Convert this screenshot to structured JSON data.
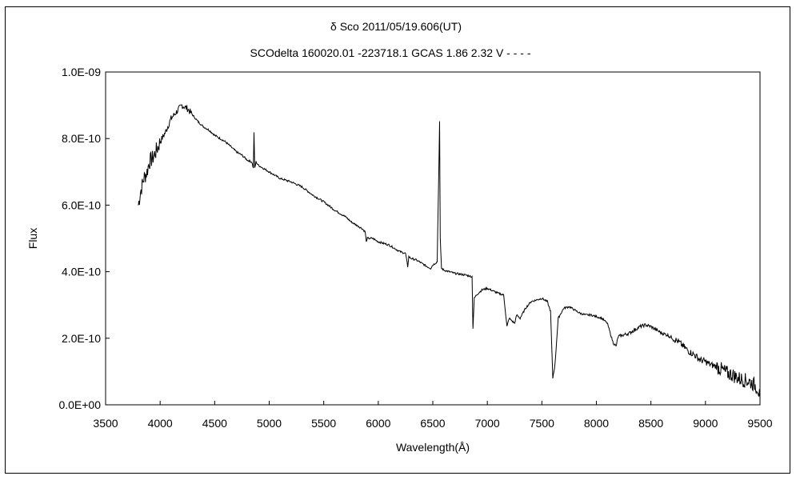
{
  "chart_data": {
    "type": "line",
    "title": "δ Sco      2011/05/19.606(UT)",
    "subtitle": "SCOdelta 160020.01 -223718.1 GCAS 1.86 2.32 V - - - -",
    "xlabel": "Wavelength(Å)",
    "ylabel": "Flux",
    "xlim": [
      3500,
      9500
    ],
    "ylim": [
      0,
      1e-09
    ],
    "x_ticks": [
      3500,
      4000,
      4500,
      5000,
      5500,
      6000,
      6500,
      7000,
      7500,
      8000,
      8500,
      9000,
      9500
    ],
    "x_tick_labels": [
      "3500",
      "4000",
      "4500",
      "5000",
      "5500",
      "6000",
      "6500",
      "7000",
      "7500",
      "8000",
      "8500",
      "9000",
      "9500"
    ],
    "y_ticks": [
      0,
      2e-10,
      4e-10,
      6e-10,
      8e-10,
      1e-09
    ],
    "y_tick_labels": [
      "0.0E+00",
      "2.0E-10",
      "4.0E-10",
      "6.0E-10",
      "8.0E-10",
      "1.0E-09"
    ],
    "grid": false,
    "legend": "none",
    "series": [
      {
        "x": [
          3800,
          3820,
          3850,
          3880,
          3900,
          3930,
          3960,
          4000,
          4050,
          4100,
          4150,
          4200,
          4250,
          4300,
          4350,
          4400,
          4450,
          4500,
          4550,
          4600,
          4650,
          4700,
          4750,
          4800,
          4840,
          4855,
          4861,
          4867,
          4880,
          4900,
          4950,
          5000,
          5050,
          5100,
          5150,
          5200,
          5300,
          5400,
          5500,
          5600,
          5700,
          5750,
          5800,
          5850,
          5880,
          5890,
          5900,
          5950,
          6000,
          6100,
          6200,
          6250,
          6270,
          6280,
          6300,
          6350,
          6400,
          6450,
          6480,
          6500,
          6540,
          6555,
          6562,
          6568,
          6580,
          6600,
          6700,
          6800,
          6860,
          6868,
          6880,
          6900,
          6950,
          7000,
          7100,
          7150,
          7180,
          7200,
          7250,
          7270,
          7300,
          7350,
          7400,
          7500,
          7550,
          7580,
          7600,
          7620,
          7650,
          7700,
          7750,
          7800,
          7850,
          7900,
          7950,
          8000,
          8050,
          8100,
          8150,
          8180,
          8200,
          8250,
          8300,
          8350,
          8400,
          8450,
          8500,
          8550,
          8600,
          8650,
          8700,
          8750,
          8800,
          8850,
          8900,
          8950,
          9000,
          9050,
          9100,
          9150,
          9200,
          9250,
          9300,
          9350,
          9400,
          9450,
          9480,
          9500
        ],
        "y": [
          6e-10,
          6.4e-10,
          6.8e-10,
          7e-10,
          7.3e-10,
          7.4e-10,
          7.6e-10,
          7.9e-10,
          8.2e-10,
          8.6e-10,
          8.8e-10,
          9e-10,
          8.9e-10,
          8.7e-10,
          8.5e-10,
          8.35e-10,
          8.25e-10,
          8.1e-10,
          8e-10,
          7.9e-10,
          7.75e-10,
          7.6e-10,
          7.5e-10,
          7.35e-10,
          7.3e-10,
          7.1e-10,
          8.2e-10,
          7.1e-10,
          7.3e-10,
          7.2e-10,
          7.1e-10,
          7e-10,
          6.9e-10,
          6.8e-10,
          6.75e-10,
          6.7e-10,
          6.55e-10,
          6.3e-10,
          6.1e-10,
          5.85e-10,
          5.65e-10,
          5.5e-10,
          5.4e-10,
          5.3e-10,
          5.2e-10,
          4.9e-10,
          5e-10,
          5e-10,
          4.9e-10,
          4.8e-10,
          4.6e-10,
          4.55e-10,
          4.15e-10,
          4.45e-10,
          4.4e-10,
          4.35e-10,
          4.25e-10,
          4.15e-10,
          4.1e-10,
          4.2e-10,
          4.3e-10,
          7e-10,
          8.5e-10,
          5e-10,
          4.1e-10,
          4.05e-10,
          3.95e-10,
          3.9e-10,
          3.85e-10,
          2.3e-10,
          3.2e-10,
          3.3e-10,
          3.45e-10,
          3.5e-10,
          3.35e-10,
          3.3e-10,
          2.35e-10,
          2.6e-10,
          2.45e-10,
          2.7e-10,
          2.6e-10,
          2.9e-10,
          3.1e-10,
          3.2e-10,
          3.1e-10,
          2.8e-10,
          8e-11,
          1.2e-10,
          2.6e-10,
          2.9e-10,
          2.95e-10,
          2.85e-10,
          2.75e-10,
          2.7e-10,
          2.7e-10,
          2.65e-10,
          2.6e-10,
          2.45e-10,
          1.9e-10,
          1.75e-10,
          2.05e-10,
          2.1e-10,
          2.15e-10,
          2.25e-10,
          2.35e-10,
          2.4e-10,
          2.35e-10,
          2.25e-10,
          2.15e-10,
          2.1e-10,
          2e-10,
          1.9e-10,
          1.75e-10,
          1.6e-10,
          1.5e-10,
          1.35e-10,
          1.3e-10,
          1.2e-10,
          1.15e-10,
          1.05e-10,
          9.5e-11,
          9e-11,
          8e-11,
          7.5e-11,
          7e-11,
          6e-11,
          5e-11,
          2e-11
        ]
      }
    ]
  }
}
